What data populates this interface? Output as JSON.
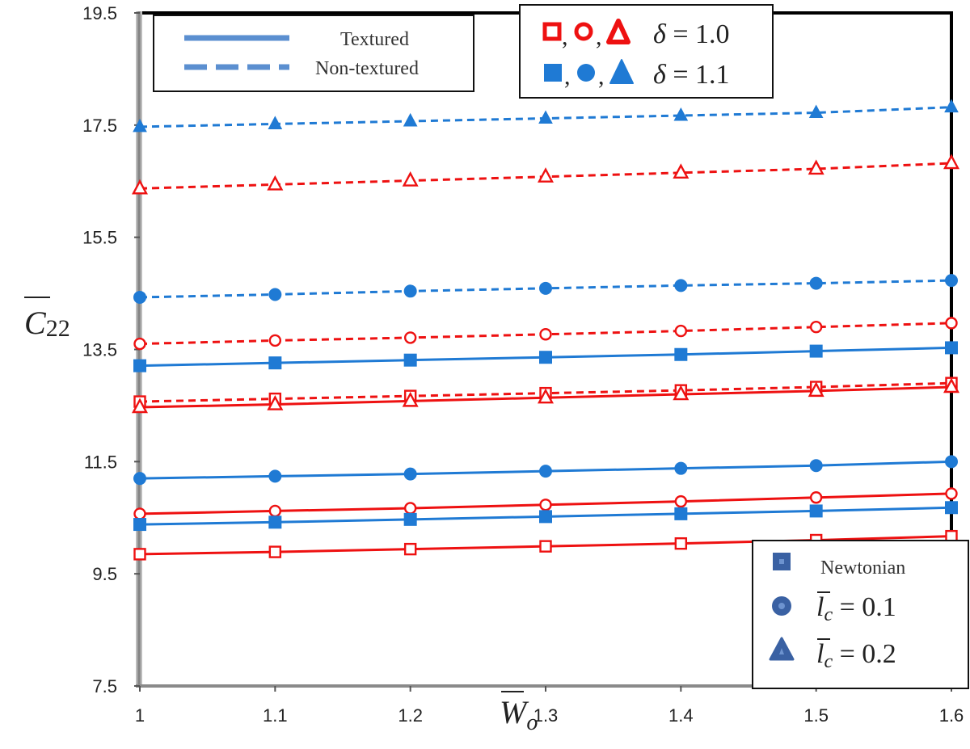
{
  "chart_data": {
    "type": "line",
    "xlabel": "W_o",
    "ylabel": "C_22",
    "x": [
      1,
      1.1,
      1.2,
      1.3,
      1.4,
      1.5,
      1.6
    ],
    "x_tick_labels": [
      "1",
      "1.1",
      "1.2",
      "1.3",
      "1.4",
      "1.5",
      "1.6"
    ],
    "xlim": [
      1,
      1.6
    ],
    "ylim": [
      7.5,
      19.5
    ],
    "y_ticks": [
      7.5,
      9.5,
      11.5,
      13.5,
      15.5,
      17.5,
      19.5
    ],
    "y_tick_labels": [
      "7.5",
      "9.5",
      "11.5",
      "13.5",
      "15.5",
      "17.5",
      "19.5"
    ],
    "grid": false,
    "colors": {
      "delta_1_0": "#ee1111",
      "delta_1_1": "#1f7ad4"
    },
    "series": [
      {
        "style": "dashed",
        "color": "blue",
        "marker": "triangle",
        "filled": true,
        "values": [
          17.47,
          17.52,
          17.57,
          17.62,
          17.67,
          17.72,
          17.82
        ]
      },
      {
        "style": "dashed",
        "color": "red",
        "marker": "triangle",
        "filled": false,
        "values": [
          16.37,
          16.44,
          16.51,
          16.58,
          16.65,
          16.72,
          16.82
        ]
      },
      {
        "style": "dashed",
        "color": "blue",
        "marker": "circle",
        "filled": true,
        "values": [
          14.43,
          14.48,
          14.54,
          14.59,
          14.64,
          14.68,
          14.73
        ]
      },
      {
        "style": "dashed",
        "color": "red",
        "marker": "circle",
        "filled": false,
        "values": [
          13.6,
          13.66,
          13.71,
          13.77,
          13.83,
          13.9,
          13.97
        ]
      },
      {
        "style": "solid",
        "color": "blue",
        "marker": "square",
        "filled": true,
        "values": [
          13.21,
          13.26,
          13.31,
          13.36,
          13.41,
          13.47,
          13.53
        ]
      },
      {
        "style": "dashed",
        "color": "red",
        "marker": "square",
        "filled": false,
        "values": [
          12.57,
          12.62,
          12.67,
          12.72,
          12.77,
          12.83,
          12.9
        ]
      },
      {
        "style": "solid",
        "color": "red",
        "marker": "triangle",
        "filled": false,
        "values": [
          12.47,
          12.52,
          12.58,
          12.64,
          12.7,
          12.76,
          12.83
        ]
      },
      {
        "style": "solid",
        "color": "blue",
        "marker": "circle",
        "filled": true,
        "values": [
          11.2,
          11.24,
          11.28,
          11.33,
          11.38,
          11.43,
          11.5
        ]
      },
      {
        "style": "solid",
        "color": "red",
        "marker": "circle",
        "filled": false,
        "values": [
          10.57,
          10.62,
          10.67,
          10.73,
          10.79,
          10.86,
          10.93
        ]
      },
      {
        "style": "solid",
        "color": "blue",
        "marker": "square",
        "filled": true,
        "values": [
          10.38,
          10.42,
          10.47,
          10.52,
          10.57,
          10.62,
          10.68
        ]
      },
      {
        "style": "solid",
        "color": "red",
        "marker": "square",
        "filled": false,
        "values": [
          9.85,
          9.89,
          9.94,
          9.99,
          10.04,
          10.1,
          10.17
        ]
      }
    ],
    "legends": {
      "line_style": {
        "placement": "top-left",
        "items": [
          "Textured",
          "Non-textured"
        ]
      },
      "delta": {
        "placement": "top-center",
        "items": [
          "δ = 1.0",
          "δ = 1.1"
        ]
      },
      "marker": {
        "placement": "bottom-right",
        "items": [
          "Newtonian",
          "l_c = 0.1",
          "l_c = 0.2"
        ]
      }
    }
  }
}
